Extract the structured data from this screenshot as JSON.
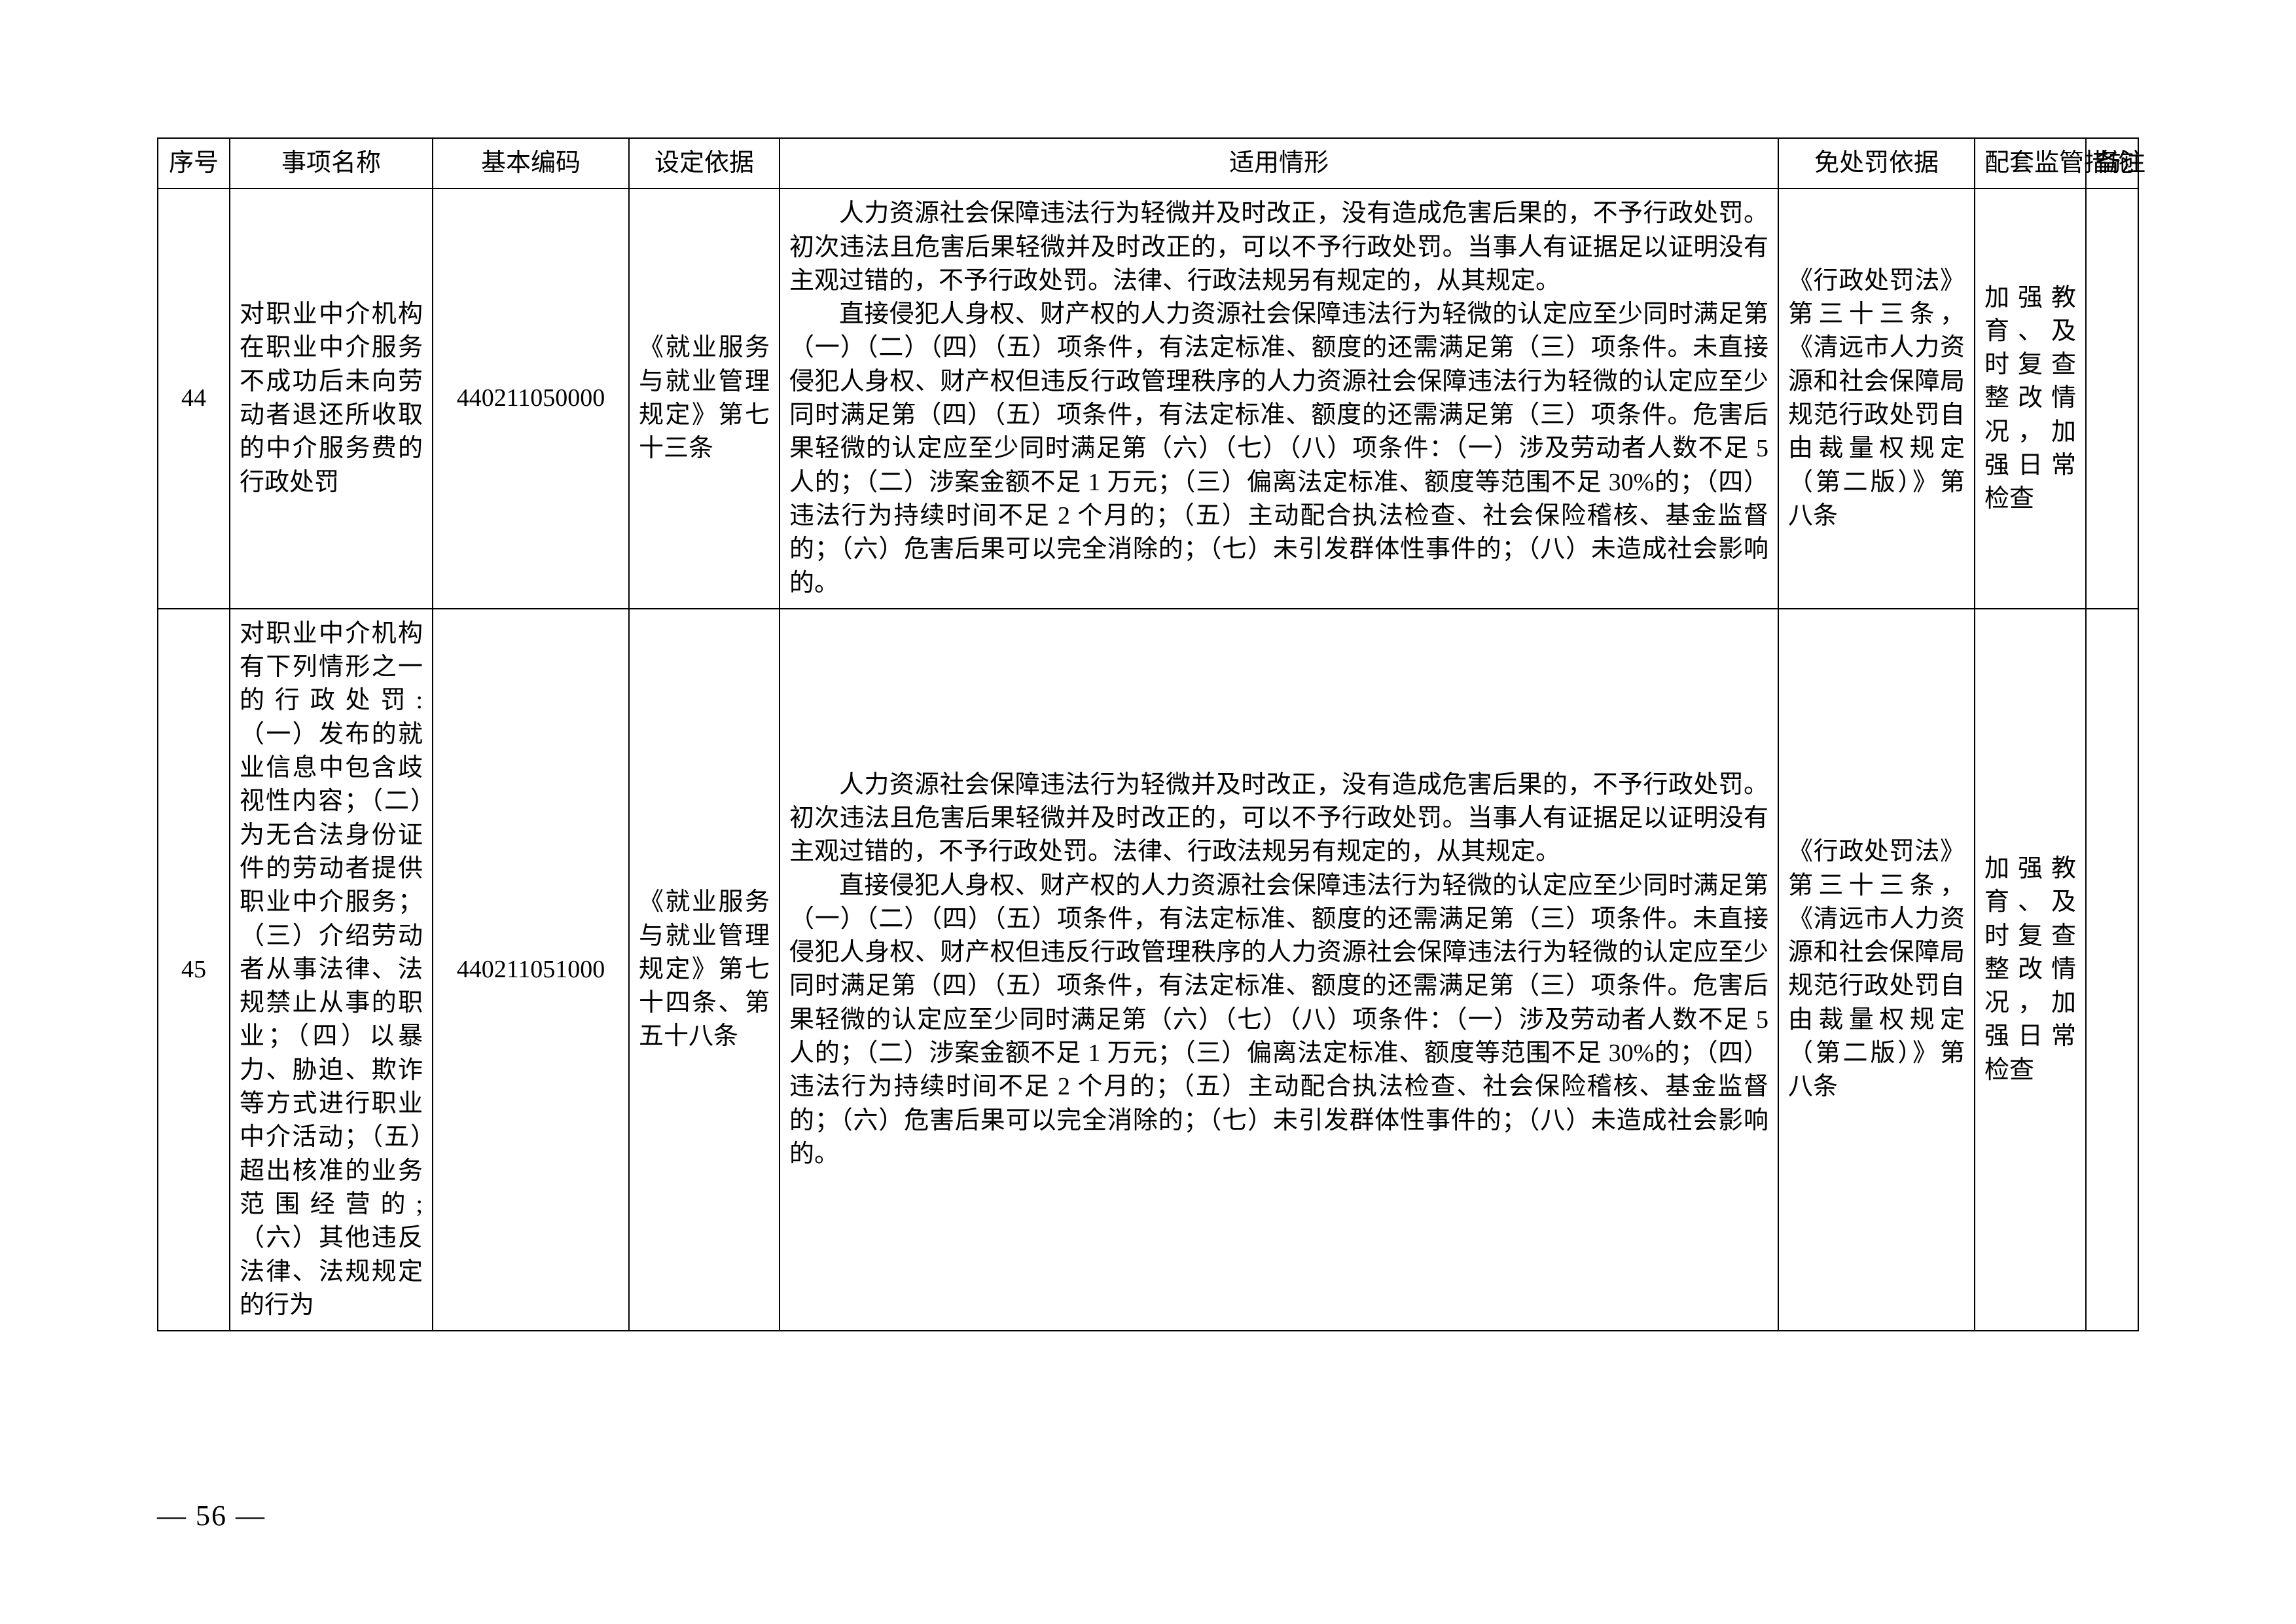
{
  "pageNumber": "— 56 —",
  "columns": {
    "seq": "序号",
    "name": "事项名称",
    "code": "基本编码",
    "basis": "设定依据",
    "situ": "适用情形",
    "exempt": "免处罚依据",
    "meas": "配套监管措施",
    "note": "备注"
  },
  "rows": [
    {
      "seq": "44",
      "name": "对职业中介机构在职业中介服务不成功后未向劳动者退还所收取的中介服务费的行政处罚",
      "code": "440211050000",
      "basis": "《就业服务与就业管理规定》第七十三条",
      "situ_p1": "人力资源社会保障违法行为轻微并及时改正，没有造成危害后果的，不予行政处罚。初次违法且危害后果轻微并及时改正的，可以不予行政处罚。当事人有证据足以证明没有主观过错的，不予行政处罚。法律、行政法规另有规定的，从其规定。",
      "situ_p2": "直接侵犯人身权、财产权的人力资源社会保障违法行为轻微的认定应至少同时满足第（一）（二）（四）（五）项条件，有法定标准、额度的还需满足第（三）项条件。未直接侵犯人身权、财产权但违反行政管理秩序的人力资源社会保障违法行为轻微的认定应至少同时满足第（四）（五）项条件，有法定标准、额度的还需满足第（三）项条件。危害后果轻微的认定应至少同时满足第（六）（七）（八）项条件：（一）涉及劳动者人数不足 5 人的；（二）涉案金额不足 1 万元；（三）偏离法定标准、额度等范围不足 30%的；（四）违法行为持续时间不足 2 个月的；（五）主动配合执法检查、社会保险稽核、基金监督的；（六）危害后果可以完全消除的；（七）未引发群体性事件的；（八）未造成社会影响的。",
      "exempt": "《行政处罚法》第三十三条，《清远市人力资源和社会保障局规范行政处罚自由裁量权规定（第二版）》第八条",
      "meas": "加强教育、及时复查整改情况，加强日常检查",
      "note": ""
    },
    {
      "seq": "45",
      "name": "对职业中介机构有下列情形之一的行政处罚:（一）发布的就业信息中包含歧视性内容；（二）为无合法身份证件的劳动者提供职业中介服务；（三）介绍劳动者从事法律、法规禁止从事的职业；（四）以暴力、胁迫、欺诈等方式进行职业中介活动；（五）超出核准的业务范围经营的;（六）其他违反法律、法规规定的行为",
      "code": "440211051000",
      "basis": "《就业服务与就业管理规定》第七十四条、第五十八条",
      "situ_p1": "人力资源社会保障违法行为轻微并及时改正，没有造成危害后果的，不予行政处罚。初次违法且危害后果轻微并及时改正的，可以不予行政处罚。当事人有证据足以证明没有主观过错的，不予行政处罚。法律、行政法规另有规定的，从其规定。",
      "situ_p2": "直接侵犯人身权、财产权的人力资源社会保障违法行为轻微的认定应至少同时满足第（一）（二）（四）（五）项条件，有法定标准、额度的还需满足第（三）项条件。未直接侵犯人身权、财产权但违反行政管理秩序的人力资源社会保障违法行为轻微的认定应至少同时满足第（四）（五）项条件，有法定标准、额度的还需满足第（三）项条件。危害后果轻微的认定应至少同时满足第（六）（七）（八）项条件：（一）涉及劳动者人数不足 5 人的；（二）涉案金额不足 1 万元；（三）偏离法定标准、额度等范围不足 30%的；（四）违法行为持续时间不足 2 个月的；（五）主动配合执法检查、社会保险稽核、基金监督的；（六）危害后果可以完全消除的；（七）未引发群体性事件的；（八）未造成社会影响的。",
      "exempt": "《行政处罚法》第三十三条，《清远市人力资源和社会保障局规范行政处罚自由裁量权规定（第二版）》第八条",
      "meas": "加强教育、及时复查整改情况，加强日常检查",
      "note": ""
    }
  ]
}
